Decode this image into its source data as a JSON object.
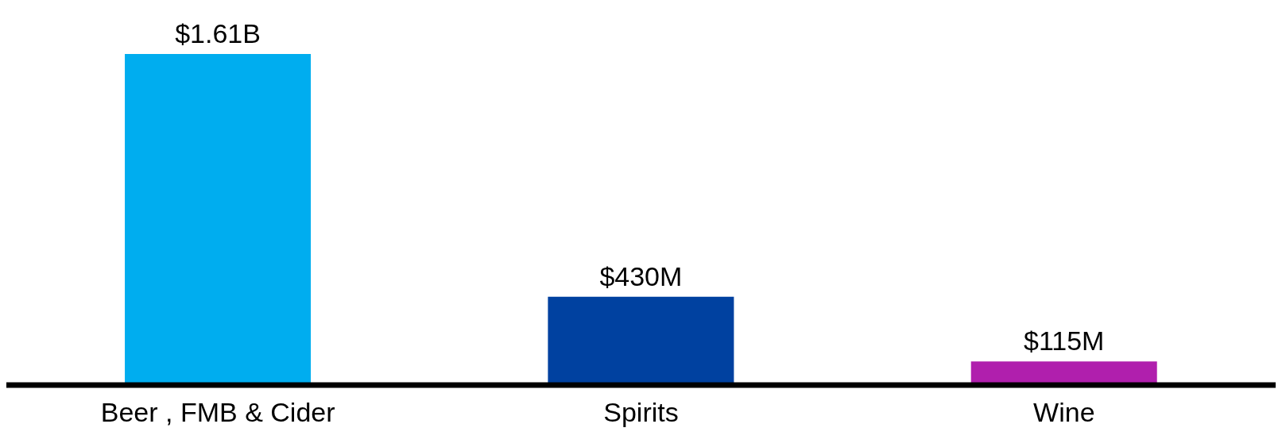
{
  "chart_data": {
    "type": "bar",
    "categories": [
      "Beer , FMB & Cider",
      "Spirits",
      "Wine"
    ],
    "values": [
      1610000000,
      430000000,
      115000000
    ],
    "value_labels": [
      "$1.61B",
      "$430M",
      "$115M"
    ],
    "colors": [
      "#00adef",
      "#0041a0",
      "#b01fad"
    ],
    "grid": false,
    "legend": false
  }
}
